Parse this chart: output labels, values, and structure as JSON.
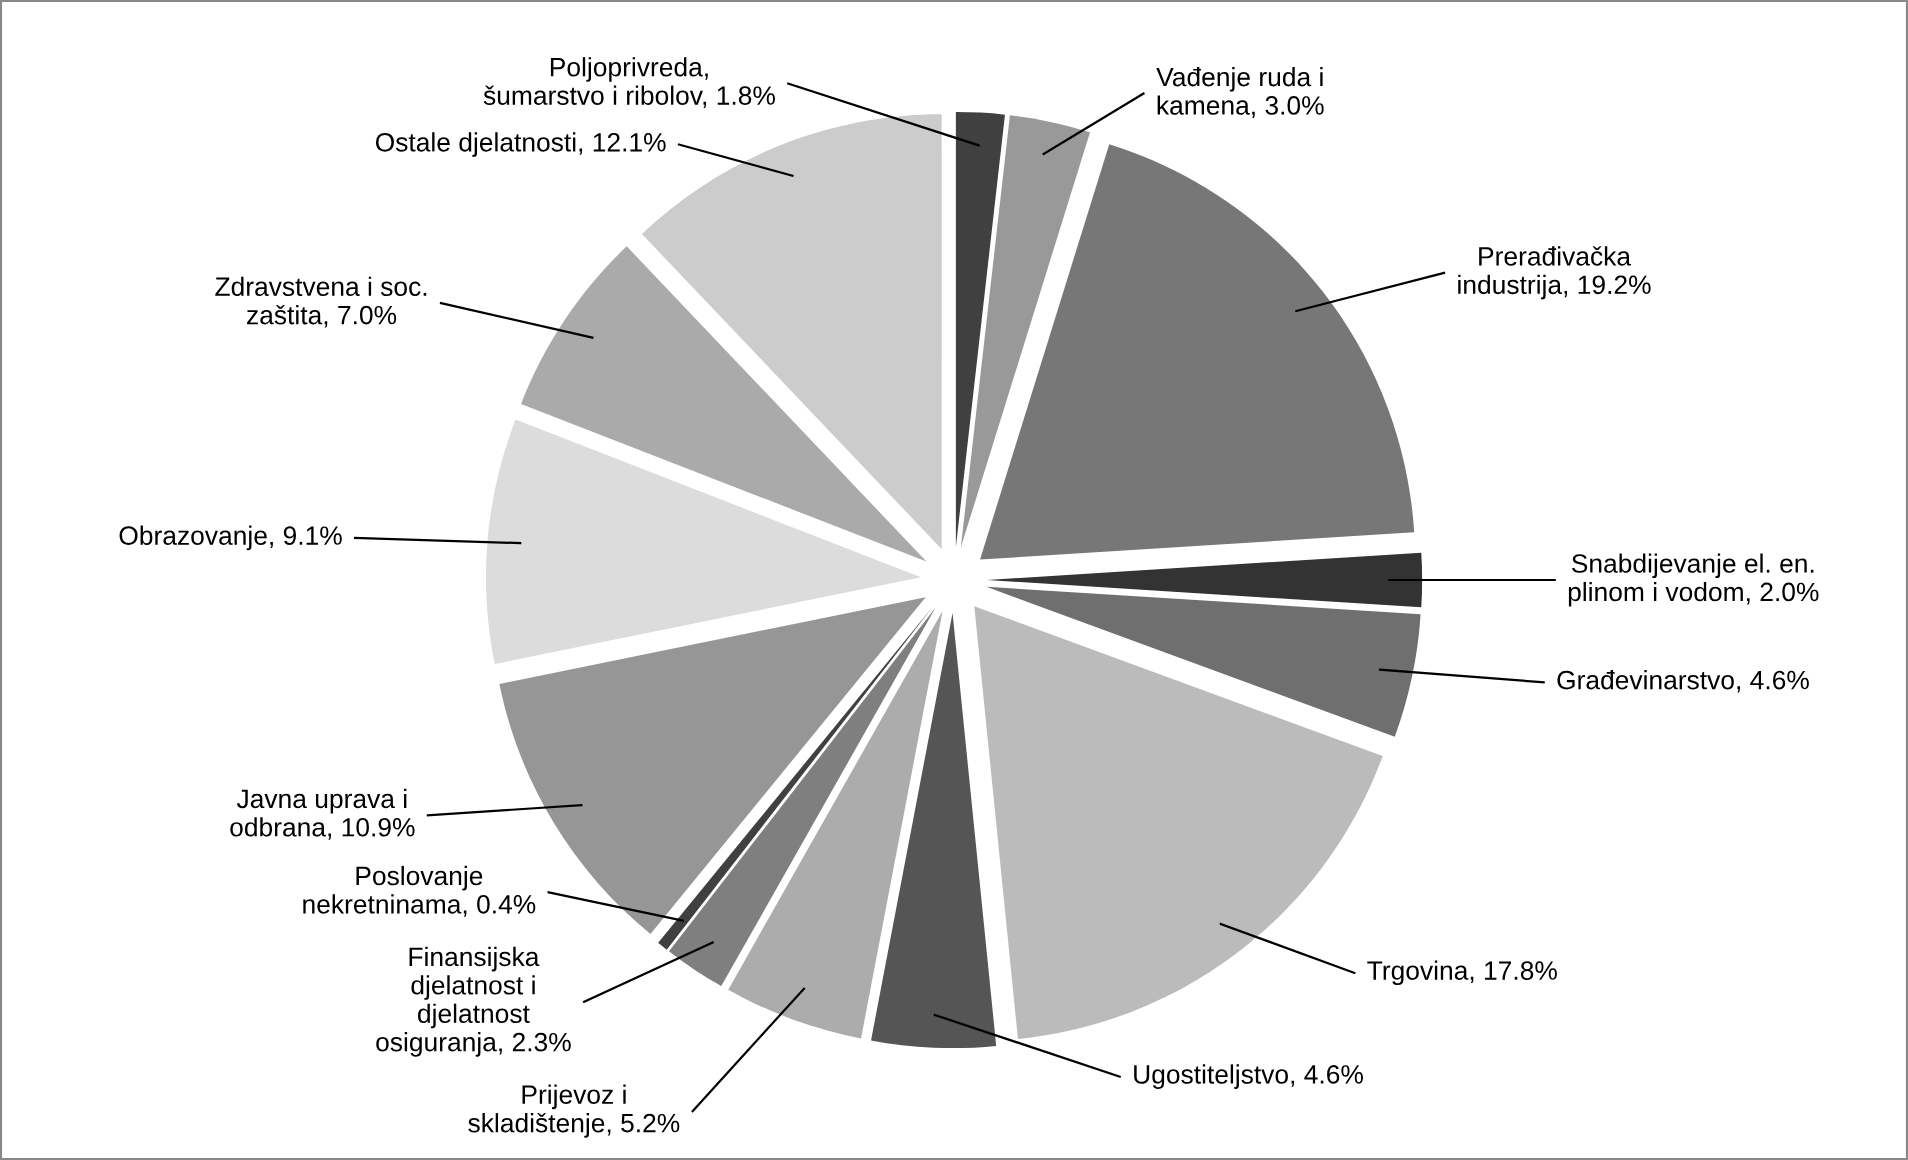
{
  "chart_data": {
    "type": "pie",
    "categories": [
      "Poljoprivreda,\nšumarstvo i ribolov",
      "Vađenje ruda i\nkamena",
      "Prerađivačka\nindustrija",
      "Snabdijevanje el. en.\nplinom i vodom",
      "Građevinarstvo",
      "Trgovina",
      "Ugostiteljstvo",
      "Prijevoz i\nskladištenje",
      "Finansijska\ndjelatnost i\ndjelatnost\nosiguranja",
      "Poslovanje\nnekretninama",
      "Javna uprava i\nodbrana",
      "Obrazovanje",
      "Zdravstvena i soc.\nzaštita",
      "Ostale djelatnosti"
    ],
    "values": [
      1.8,
      3.0,
      19.2,
      2.0,
      4.6,
      17.8,
      4.6,
      5.2,
      2.3,
      0.4,
      10.9,
      9.1,
      7.0,
      12.1
    ],
    "value_labels": [
      "1.8%",
      "3.0%",
      "19.2%",
      "2.0%",
      "4.6%",
      "17.8%",
      "4.6%",
      "5.2%",
      "2.3%",
      "0.4%",
      "10.9%",
      "9.1%",
      "7.0%",
      "12.1%"
    ],
    "colors": [
      "#404040",
      "#999999",
      "#777777",
      "#333333",
      "#6f6f6f",
      "#bbbbbb",
      "#555555",
      "#acacac",
      "#7f7f7f",
      "#404040",
      "#969696",
      "#dcdcdc",
      "#aaaaaa",
      "#cccccc"
    ]
  }
}
